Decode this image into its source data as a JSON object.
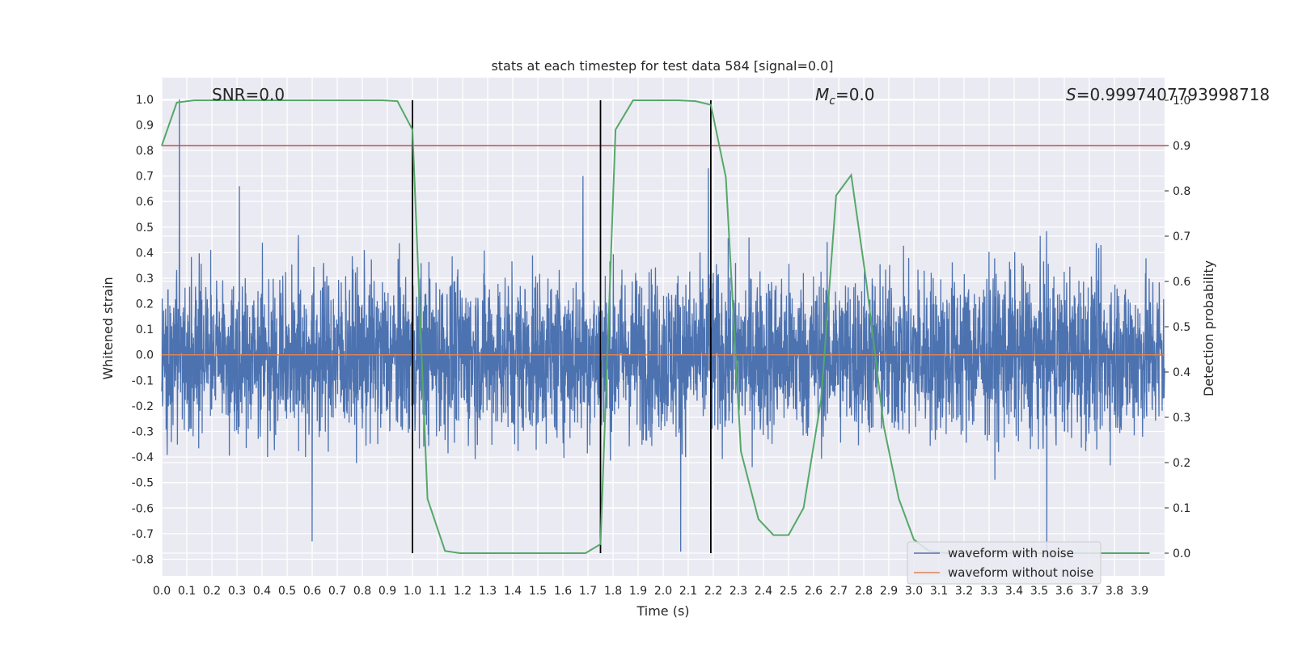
{
  "chart_data": {
    "type": "line",
    "title": "stats at each timestep for test data 584 [signal=0.0]",
    "xlabel": "Time (s)",
    "ylabel": "Whitened strain",
    "y2label": "Detection probability",
    "xlim": [
      0.0,
      4.0
    ],
    "ylim": [
      -0.865,
      1.085
    ],
    "y2lim": [
      -0.05,
      1.05
    ],
    "x_ticks": [
      "0.0",
      "0.1",
      "0.2",
      "0.3",
      "0.4",
      "0.5",
      "0.6",
      "0.7",
      "0.8",
      "0.9",
      "1.0",
      "1.1",
      "1.2",
      "1.3",
      "1.4",
      "1.5",
      "1.6",
      "1.7",
      "1.8",
      "1.9",
      "2.0",
      "2.1",
      "2.2",
      "2.3",
      "2.4",
      "2.5",
      "2.6",
      "2.7",
      "2.8",
      "2.9",
      "3.0",
      "3.1",
      "3.2",
      "3.3",
      "3.4",
      "3.5",
      "3.6",
      "3.7",
      "3.8",
      "3.9"
    ],
    "y_ticks": [
      "-0.8",
      "-0.7",
      "-0.6",
      "-0.5",
      "-0.4",
      "-0.3",
      "-0.2",
      "-0.1",
      "0.0",
      "0.1",
      "0.2",
      "0.3",
      "0.4",
      "0.5",
      "0.6",
      "0.7",
      "0.8",
      "0.9",
      "1.0"
    ],
    "y2_ticks": [
      "0.0",
      "0.1",
      "0.2",
      "0.3",
      "0.4",
      "0.5",
      "0.6",
      "0.7",
      "0.8",
      "0.9",
      "1.0"
    ],
    "annotations": {
      "snr": "SNR=0.0",
      "mc_symbol": "M",
      "mc_sub": "c",
      "mc_value": "=0.0",
      "s_symbol": "S",
      "s_value": "=0.9997407793998718"
    },
    "legend": {
      "placement": "lower-right",
      "entries": [
        "waveform with noise",
        "waveform without noise"
      ]
    },
    "colors": {
      "noise": "#4c72b0",
      "clean": "#dd8452",
      "probability": "#55a868",
      "threshold": "#c44e52",
      "marker": "#000000",
      "background": "#eaeaf2",
      "grid": "#ffffff"
    },
    "noise_envelope": {
      "typical_range": [
        -0.45,
        0.4
      ],
      "notable_peaks": [
        {
          "x": 0.07,
          "y": 1.0
        },
        {
          "x": 0.31,
          "y": 0.66
        },
        {
          "x": 1.68,
          "y": 0.7
        },
        {
          "x": 2.18,
          "y": 0.73
        },
        {
          "x": 3.53,
          "y": -0.8
        },
        {
          "x": 2.07,
          "y": -0.77
        },
        {
          "x": 0.6,
          "y": -0.73
        }
      ]
    },
    "series": [
      {
        "name": "waveform without noise",
        "axis": "left",
        "x": [
          0.0,
          4.0
        ],
        "y": [
          0.0,
          0.0
        ]
      },
      {
        "axis": "right",
        "x": [
          0.0,
          0.06,
          0.13,
          0.19,
          0.25,
          0.31,
          0.38,
          0.44,
          0.5,
          0.56,
          0.63,
          0.69,
          0.75,
          0.81,
          0.88,
          0.94,
          1.0,
          1.06,
          1.13,
          1.19,
          1.25,
          1.31,
          1.38,
          1.44,
          1.5,
          1.56,
          1.63,
          1.69,
          1.75,
          1.81,
          1.88,
          1.94,
          2.0,
          2.06,
          2.13,
          2.19,
          2.25,
          2.31,
          2.38,
          2.44,
          2.5,
          2.56,
          2.63,
          2.69,
          2.75,
          2.81,
          2.88,
          2.94,
          3.0,
          3.06,
          3.13,
          3.19,
          3.25,
          3.31,
          3.38,
          3.44,
          3.5,
          3.56,
          3.63,
          3.69,
          3.75,
          3.81,
          3.88,
          3.94
        ],
        "y": [
          0.9,
          0.995,
          1.0,
          1.0,
          1.0,
          1.0,
          1.0,
          1.0,
          1.0,
          1.0,
          1.0,
          1.0,
          1.0,
          1.0,
          1.0,
          0.998,
          0.935,
          0.12,
          0.005,
          0.0,
          0.0,
          0.0,
          0.0,
          0.0,
          0.0,
          0.0,
          0.0,
          0.0,
          0.02,
          0.935,
          1.0,
          1.0,
          1.0,
          1.0,
          0.998,
          0.99,
          0.83,
          0.225,
          0.075,
          0.04,
          0.04,
          0.1,
          0.34,
          0.79,
          0.835,
          0.6,
          0.28,
          0.12,
          0.03,
          0.005,
          0.0,
          0.0,
          0.0,
          0.0,
          0.0,
          0.0,
          0.0,
          0.0,
          0.0,
          0.0,
          0.0,
          0.0,
          0.0,
          0.0
        ]
      },
      {
        "axis": "right",
        "kind": "threshold",
        "x": [
          0.0,
          4.0
        ],
        "y": [
          0.9,
          0.9
        ]
      }
    ],
    "vertical_markers": [
      {
        "x": 1.0,
        "y_range": [
          0.0,
          1.0
        ]
      },
      {
        "x": 1.75,
        "y_range": [
          0.0,
          1.0
        ]
      },
      {
        "x": 2.19,
        "y_range": [
          0.0,
          1.0
        ]
      }
    ]
  }
}
